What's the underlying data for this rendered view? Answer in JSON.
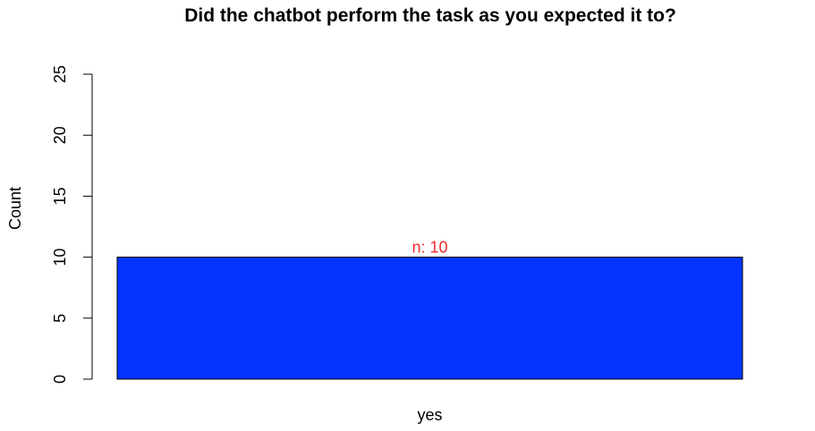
{
  "chart_data": {
    "type": "bar",
    "title": "Did the chatbot perform the task as you expected it to?",
    "xlabel": "",
    "ylabel": "Count",
    "categories": [
      "yes"
    ],
    "values": [
      10
    ],
    "data_labels": [
      "n: 10"
    ],
    "ylim": [
      0,
      25
    ],
    "yticks": [
      0,
      5,
      10,
      15,
      20,
      25
    ],
    "grid": false,
    "legend": "none",
    "colors": {
      "bar_fill": "#0433ff",
      "data_label": "#ee2c2c"
    }
  }
}
